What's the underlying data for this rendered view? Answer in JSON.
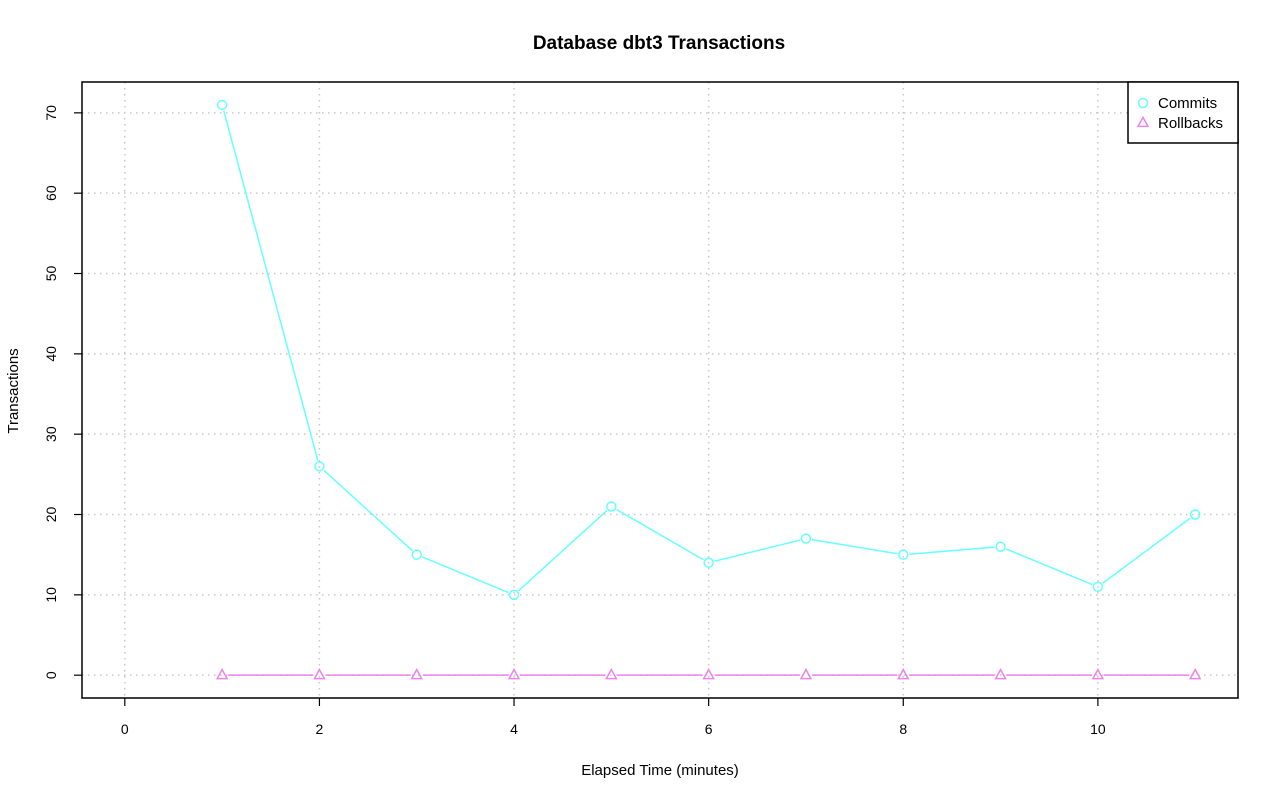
{
  "chart_data": {
    "type": "line",
    "title": "Database dbt3 Transactions",
    "xlabel": "Elapsed Time (minutes)",
    "ylabel": "Transactions",
    "xlim": [
      -0.44,
      11.44
    ],
    "ylim": [
      -2.84,
      73.84
    ],
    "x_ticks": [
      0,
      2,
      4,
      6,
      8,
      10
    ],
    "y_ticks": [
      0,
      10,
      20,
      30,
      40,
      50,
      60,
      70
    ],
    "grid": true,
    "legend_position": "top-right",
    "x": [
      1,
      2,
      3,
      4,
      5,
      6,
      7,
      8,
      9,
      10,
      11
    ],
    "series": [
      {
        "name": "Commits",
        "color": "#66ffff",
        "marker": "circle",
        "values": [
          71,
          26,
          15,
          10,
          21,
          14,
          17,
          15,
          16,
          11,
          20
        ]
      },
      {
        "name": "Rollbacks",
        "color": "#ee82ee",
        "marker": "triangle",
        "values": [
          0,
          0,
          0,
          0,
          0,
          0,
          0,
          0,
          0,
          0,
          0
        ]
      }
    ]
  }
}
